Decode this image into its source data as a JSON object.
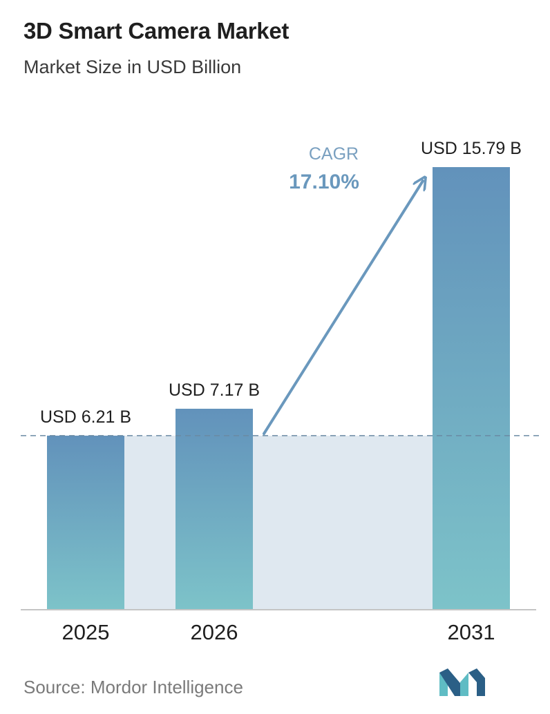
{
  "title": "3D Smart Camera Market",
  "subtitle": "Market Size in USD Billion",
  "source": "Source: Mordor Intelligence",
  "cagr": {
    "label": "CAGR",
    "value": "17.10%"
  },
  "colors": {
    "bar_top": "#6292bb",
    "bar_bottom": "#7dc3c9",
    "band": "#dfe8f0",
    "arrow": "#6a98bd",
    "dashed_line": "#6a8aa3",
    "axis": "#c4c4c4",
    "logo_dark": "#2b5f86",
    "logo_light": "#5fbcc4"
  },
  "chart_data": {
    "type": "bar",
    "categories": [
      "2025",
      "2026",
      "2031"
    ],
    "values": [
      6.21,
      7.17,
      15.79
    ],
    "data_labels": [
      "USD 6.21 B",
      "USD 7.17 B",
      "USD 15.79 B"
    ],
    "ylim": [
      0,
      15.79
    ],
    "grid": false,
    "reference_line": 6.21
  }
}
